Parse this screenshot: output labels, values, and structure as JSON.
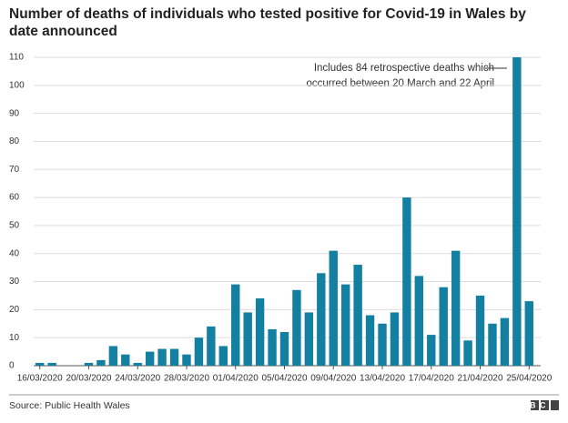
{
  "chart_data": {
    "type": "bar",
    "title": "Number of deaths of individuals who tested positive for Covid-19 in Wales by date announced",
    "annotation": [
      "Includes 84 retrospective deaths which",
      "occurred between 20 March and 22 April"
    ],
    "categories": [
      "16/03/2020",
      null,
      null,
      null,
      "20/03/2020",
      null,
      null,
      null,
      "24/03/2020",
      null,
      null,
      null,
      "28/03/2020",
      null,
      null,
      null,
      "01/04/2020",
      null,
      null,
      null,
      "05/04/2020",
      null,
      null,
      null,
      "09/04/2020",
      null,
      null,
      null,
      "13/04/2020",
      null,
      null,
      null,
      "17/04/2020",
      null,
      null,
      null,
      "21/04/2020",
      null,
      null,
      null,
      "25/04/2020"
    ],
    "values": [
      1,
      1,
      0,
      0,
      1,
      2,
      7,
      4,
      1,
      5,
      6,
      6,
      4,
      10,
      14,
      7,
      29,
      19,
      24,
      13,
      12,
      27,
      19,
      33,
      41,
      29,
      36,
      18,
      15,
      19,
      60,
      32,
      11,
      28,
      41,
      9,
      25,
      15,
      17,
      110,
      23
    ],
    "color": "#1380a1",
    "ylim": [
      0,
      110
    ],
    "yticks": [
      0,
      10,
      20,
      30,
      40,
      50,
      60,
      70,
      80,
      90,
      100,
      110
    ],
    "grid": true,
    "source": "Source: Public Health Wales",
    "logo": "BBC"
  }
}
